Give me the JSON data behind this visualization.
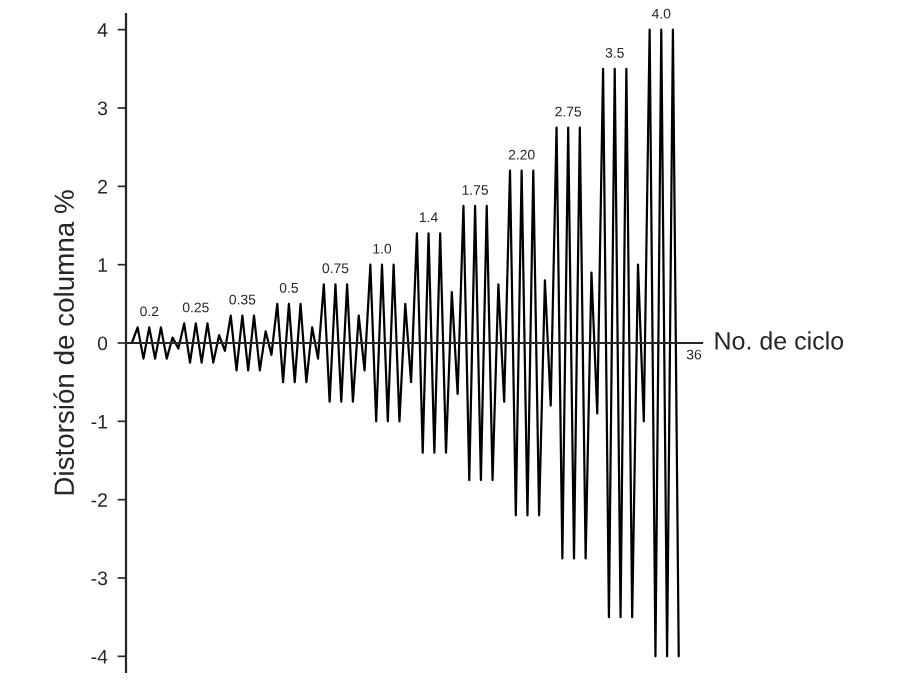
{
  "chart_data": {
    "type": "line",
    "ylabel": "Distorsión de columna %",
    "xlabel": "No. de ciclo",
    "categories": [
      null,
      null,
      null,
      null,
      null,
      null,
      null,
      null,
      null,
      null,
      null,
      null,
      null,
      null,
      null,
      null,
      null,
      null,
      null,
      null,
      null,
      null,
      null,
      null,
      null,
      null,
      null,
      null,
      null,
      null,
      null,
      null,
      null,
      null,
      null,
      null,
      null,
      null,
      null,
      null,
      null,
      null,
      null,
      null,
      null,
      null,
      null,
      null,
      null,
      null,
      null,
      null,
      null,
      null,
      null,
      null,
      null,
      null,
      null,
      null,
      null,
      null,
      null,
      null,
      null,
      null,
      null,
      null,
      null,
      null,
      null,
      null,
      null,
      null,
      null,
      null,
      null,
      null,
      null,
      null,
      null,
      null,
      null,
      null,
      null,
      null,
      null,
      null,
      null,
      null,
      null,
      null,
      null,
      null,
      null
    ],
    "series": [
      {
        "color": "#000000",
        "values": [
          0,
          0.2,
          -0.2,
          0.2,
          -0.2,
          0.2,
          -0.2,
          0.07,
          -0.07,
          0.25,
          -0.25,
          0.25,
          -0.25,
          0.25,
          -0.25,
          0.1,
          -0.1,
          0.35,
          -0.35,
          0.35,
          -0.35,
          0.35,
          -0.35,
          0.15,
          -0.15,
          0.5,
          -0.5,
          0.5,
          -0.5,
          0.5,
          -0.5,
          0.2,
          -0.2,
          0.75,
          -0.75,
          0.75,
          -0.75,
          0.75,
          -0.75,
          0.35,
          -0.35,
          1.0,
          -1.0,
          1.0,
          -1.0,
          1.0,
          -1.0,
          0.5,
          -0.5,
          1.4,
          -1.4,
          1.4,
          -1.4,
          1.4,
          -1.4,
          0.65,
          -0.65,
          1.75,
          -1.75,
          1.75,
          -1.75,
          1.75,
          -1.75,
          0.75,
          -0.75,
          2.2,
          -2.2,
          2.2,
          -2.2,
          2.2,
          -2.2,
          0.8,
          -0.8,
          2.75,
          -2.75,
          2.75,
          -2.75,
          2.75,
          -2.75,
          0.9,
          -0.9,
          3.5,
          -3.5,
          3.5,
          -3.5,
          3.5,
          -3.5,
          1.0,
          -1.0,
          4.0,
          -4.0,
          4.0,
          -4.0,
          4.0,
          -4.0
        ],
        "value_labels": [
          null,
          null,
          null,
          "0.2",
          null,
          null,
          null,
          null,
          null,
          null,
          null,
          "0.25",
          null,
          null,
          null,
          null,
          null,
          null,
          null,
          "0.35",
          null,
          null,
          null,
          null,
          null,
          null,
          null,
          "0.5",
          null,
          null,
          null,
          null,
          null,
          null,
          null,
          "0.75",
          null,
          null,
          null,
          null,
          null,
          null,
          null,
          "1.0",
          null,
          null,
          null,
          null,
          null,
          null,
          null,
          "1.4",
          null,
          null,
          null,
          null,
          null,
          null,
          null,
          "1.75",
          null,
          null,
          null,
          null,
          null,
          null,
          null,
          "2.20",
          null,
          null,
          null,
          null,
          null,
          null,
          null,
          "2.75",
          null,
          null,
          null,
          null,
          null,
          null,
          null,
          "3.5",
          null,
          null,
          null,
          null,
          null,
          null,
          null,
          "4.0",
          null,
          null,
          null
        ]
      }
    ],
    "ylim": [
      -4.2,
      4.2
    ],
    "yticks": [
      -4,
      -3,
      -2,
      -1,
      0,
      1,
      2,
      3,
      4
    ],
    "annotations": [
      "36"
    ],
    "marker": "none",
    "line_style": "solid",
    "legend": false
  }
}
